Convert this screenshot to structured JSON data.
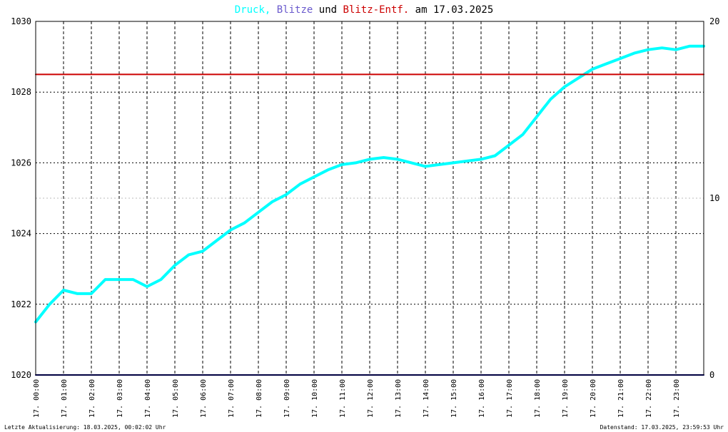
{
  "title": {
    "part1": "Druck,",
    "part2": "Blitze",
    "part3": "und",
    "part4": "Blitz-Entf.",
    "part5": "am 17.03.2025"
  },
  "footer": {
    "left": "Letzte Aktualisierung: 18.03.2025, 00:02:02 Uhr",
    "right": "Datenstand: 17.03.2025, 23:59:53 Uhr"
  },
  "colors": {
    "pressure": "#00ffff",
    "blitze": "#000080",
    "blitz_entf": "#cc0000",
    "title_blitze": "#6a5acd",
    "grid": "#000000",
    "grid_light": "#bbbbbb",
    "background": "#ffffff"
  },
  "chart_data": {
    "type": "line",
    "date": "17.03.2025",
    "x_tick_labels": [
      "17. 00:00",
      "17. 01:00",
      "17. 02:00",
      "17. 03:00",
      "17. 04:00",
      "17. 05:00",
      "17. 06:00",
      "17. 07:00",
      "17. 08:00",
      "17. 09:00",
      "17. 10:00",
      "17. 11:00",
      "17. 12:00",
      "17. 13:00",
      "17. 14:00",
      "17. 15:00",
      "17. 16:00",
      "17. 17:00",
      "17. 18:00",
      "17. 19:00",
      "17. 20:00",
      "17. 21:00",
      "17. 22:00",
      "17. 23:00"
    ],
    "y_left": {
      "ylim": [
        1020,
        1030
      ],
      "ticks": [
        "1020",
        "1022",
        "1024",
        "1026",
        "1028",
        "1030"
      ]
    },
    "y_right": {
      "ylim": [
        0,
        20
      ],
      "ticks": [
        "0",
        "10",
        "20"
      ]
    },
    "grid": true,
    "series": [
      {
        "name": "Druck",
        "axis": "left",
        "x_hours": [
          0,
          0.5,
          1,
          1.5,
          2,
          2.5,
          3,
          3.5,
          4,
          4.5,
          5,
          5.5,
          6,
          6.5,
          7,
          7.5,
          8,
          8.5,
          9,
          9.5,
          10,
          10.5,
          11,
          11.5,
          12,
          12.5,
          13,
          13.5,
          14,
          14.5,
          15,
          15.5,
          16,
          16.5,
          17,
          17.5,
          18,
          18.5,
          19,
          19.5,
          20,
          20.5,
          21,
          21.5,
          22,
          22.5,
          23,
          23.5,
          24
        ],
        "values": [
          1021.5,
          1022.0,
          1022.4,
          1022.3,
          1022.3,
          1022.7,
          1022.7,
          1022.7,
          1022.5,
          1022.7,
          1023.1,
          1023.4,
          1023.5,
          1023.8,
          1024.1,
          1024.3,
          1024.6,
          1024.9,
          1025.1,
          1025.4,
          1025.6,
          1025.8,
          1025.95,
          1026.0,
          1026.1,
          1026.15,
          1026.1,
          1026.0,
          1025.9,
          1025.95,
          1026.0,
          1026.05,
          1026.1,
          1026.2,
          1026.5,
          1026.8,
          1027.3,
          1027.8,
          1028.15,
          1028.4,
          1028.65,
          1028.8,
          1028.95,
          1029.1,
          1029.2,
          1029.25,
          1029.2,
          1029.3,
          1029.3
        ]
      },
      {
        "name": "Blitze",
        "axis": "right",
        "x_hours": [
          0,
          24
        ],
        "values": [
          0,
          0
        ]
      },
      {
        "name": "Blitz-Entf.",
        "axis": "left",
        "x_hours": [
          0,
          24
        ],
        "values": [
          1028.5,
          1028.5
        ]
      }
    ]
  }
}
